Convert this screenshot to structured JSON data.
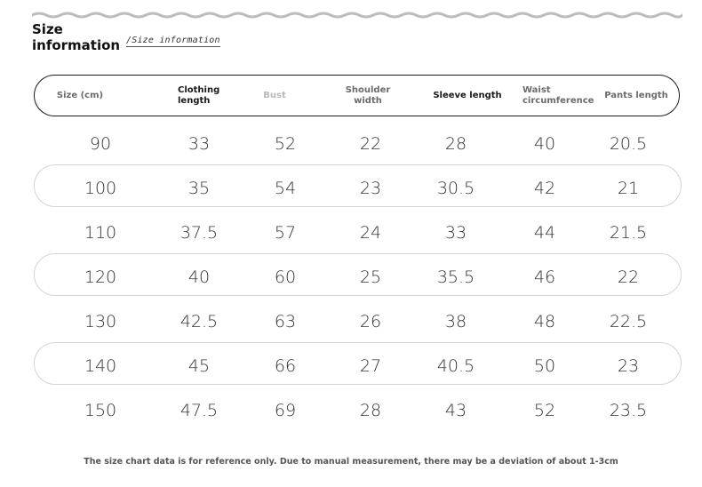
{
  "title": [
    "Size",
    "information"
  ],
  "subtitle": "/Size information",
  "headers": [
    [
      "Size (cm)"
    ],
    [
      "Clothing",
      "length"
    ],
    [
      "Bust"
    ],
    [
      "Shoulder",
      "width"
    ],
    [
      "Sleeve length"
    ],
    [
      "Waist",
      "circumference"
    ],
    [
      "Pants length"
    ]
  ],
  "rows": [
    [
      "90",
      "33",
      "52",
      "22",
      "28",
      "40",
      "20.5"
    ],
    [
      "100",
      "35",
      "54",
      "23",
      "30.5",
      "42",
      "21"
    ],
    [
      "110",
      "37.5",
      "57",
      "24",
      "33",
      "44",
      "21.5"
    ],
    [
      "120",
      "40",
      "60",
      "25",
      "35.5",
      "46",
      "22"
    ],
    [
      "130",
      "42.5",
      "63",
      "26",
      "38",
      "48",
      "22.5"
    ],
    [
      "140",
      "45",
      "66",
      "27",
      "40.5",
      "50",
      "23"
    ],
    [
      "150",
      "47.5",
      "69",
      "28",
      "43",
      "52",
      "23.5"
    ]
  ],
  "footnote": "The size chart data is for reference only. Due to manual measurement, there may be a deviation of about 1-3cm"
}
